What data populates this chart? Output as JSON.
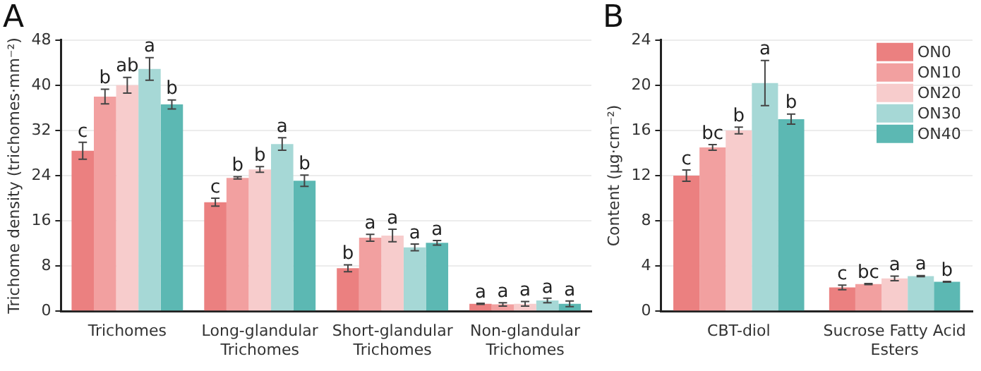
{
  "chart_data": [
    {
      "type": "bar",
      "title": "A",
      "ylabel": "Trichome density (trichomes·mm⁻²)",
      "categories": [
        "Trichomes",
        "Long-glandular Trichomes",
        "Short-glandular Trichomes",
        "Non-glandular Trichomes"
      ],
      "series": [
        {
          "color": "#eb8080",
          "values": [
            28.4,
            19.3,
            7.6,
            1.3
          ],
          "errors": [
            1.5,
            0.7,
            0.6,
            0.1
          ],
          "value_labels": [
            "c",
            "c",
            "b",
            "a"
          ]
        },
        {
          "color": "#f2a0a0",
          "values": [
            38.0,
            23.6,
            13.0,
            1.2
          ],
          "errors": [
            1.3,
            0.2,
            0.6,
            0.3
          ],
          "value_labels": [
            "b",
            "b",
            "a",
            "a"
          ]
        },
        {
          "color": "#f7cccc",
          "values": [
            40.0,
            25.1,
            13.4,
            1.3
          ],
          "errors": [
            1.4,
            0.5,
            1.1,
            0.4
          ],
          "value_labels": [
            "ab",
            "b",
            "a",
            "a"
          ]
        },
        {
          "color": "#a6d8d6",
          "values": [
            42.9,
            29.6,
            11.3,
            1.9
          ],
          "errors": [
            2.0,
            1.1,
            0.6,
            0.4
          ],
          "value_labels": [
            "a",
            "a",
            "a",
            "a"
          ]
        },
        {
          "color": "#5cb8b3",
          "values": [
            36.6,
            23.1,
            12.1,
            1.3
          ],
          "errors": [
            0.8,
            1.0,
            0.4,
            0.5
          ],
          "value_labels": [
            "b",
            "b",
            "a",
            "a"
          ]
        }
      ],
      "ylim": [
        0,
        48
      ],
      "yticks": [
        0,
        8,
        16,
        24,
        32,
        40,
        48
      ],
      "grid": "y"
    },
    {
      "type": "bar",
      "title": "B",
      "ylabel": "Content (μg·cm⁻²)",
      "categories": [
        "CBT-diol",
        "Sucrose Fatty Acid Esters"
      ],
      "series": [
        {
          "name": "ON0",
          "color": "#eb8080",
          "values": [
            12.0,
            2.1
          ],
          "errors": [
            0.5,
            0.2
          ],
          "value_labels": [
            "c",
            "c"
          ]
        },
        {
          "name": "ON10",
          "color": "#f2a0a0",
          "values": [
            14.5,
            2.4
          ],
          "errors": [
            0.25,
            0.05
          ],
          "value_labels": [
            "bc",
            "bc"
          ]
        },
        {
          "name": "ON20",
          "color": "#f7cccc",
          "values": [
            16.0,
            2.9
          ],
          "errors": [
            0.3,
            0.2
          ],
          "value_labels": [
            "b",
            "a"
          ]
        },
        {
          "name": "ON30",
          "color": "#a6d8d6",
          "values": [
            20.2,
            3.1
          ],
          "errors": [
            2.0,
            0.05
          ],
          "value_labels": [
            "a",
            "a"
          ]
        },
        {
          "name": "ON40",
          "color": "#5cb8b3",
          "values": [
            17.0,
            2.6
          ],
          "errors": [
            0.45,
            0.03
          ],
          "value_labels": [
            "b",
            "b"
          ]
        }
      ],
      "ylim": [
        0,
        24
      ],
      "yticks": [
        0,
        4,
        8,
        12,
        16,
        20,
        24
      ],
      "grid": "y",
      "legend": "top right"
    }
  ]
}
